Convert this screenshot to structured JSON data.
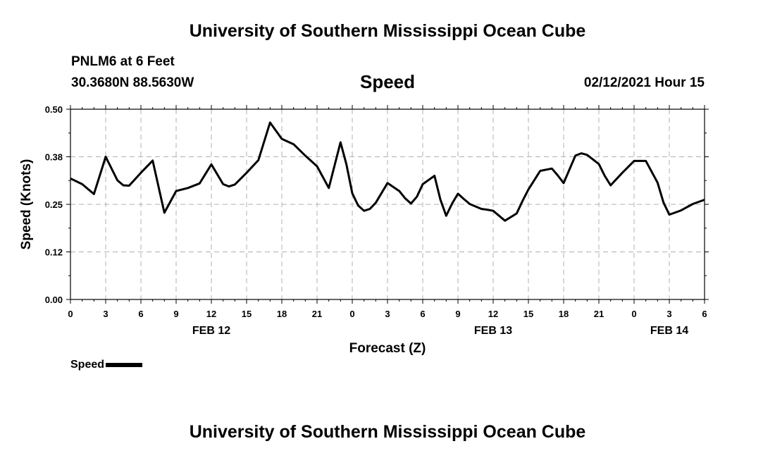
{
  "header": {
    "title": "University of Southern Mississippi Ocean Cube",
    "station": "PNLM6 at 6 Feet",
    "coords": "30.3680N 88.5630W",
    "variable": "Speed",
    "datetime": "02/12/2021 Hour 15"
  },
  "footer": {
    "title": "University of Southern Mississippi Ocean Cube"
  },
  "legend": {
    "label": "Speed"
  },
  "chart_data": {
    "type": "line",
    "title": "Speed",
    "xlabel": "Forecast (Z)",
    "ylabel": "Speed (Knots)",
    "ylim": [
      0,
      0.5
    ],
    "xlim": [
      0,
      54
    ],
    "yticks": [
      "0.00",
      "0.12",
      "0.25",
      "0.38",
      "0.50"
    ],
    "xticks": [
      "0",
      "3",
      "6",
      "9",
      "12",
      "15",
      "18",
      "21",
      "0",
      "3",
      "6",
      "9",
      "12",
      "15",
      "18",
      "21",
      "0",
      "3",
      "6"
    ],
    "date_labels": [
      {
        "label": "FEB 12",
        "at_hour": 12
      },
      {
        "label": "FEB 13",
        "at_hour": 36
      },
      {
        "label": "FEB 14",
        "at_hour": 51
      }
    ],
    "grid": true,
    "legend_position": "bottom-left",
    "line_color": "#000000",
    "series": [
      {
        "name": "Speed",
        "x": [
          0,
          1,
          2,
          3,
          4,
          4.5,
          5,
          6,
          7,
          8,
          9,
          10,
          11,
          12,
          13,
          13.5,
          14,
          15,
          16,
          17,
          18,
          19,
          20,
          21,
          22,
          23,
          23.5,
          24,
          24.5,
          25,
          25.5,
          26,
          27,
          28,
          28.5,
          29,
          29.5,
          30,
          31,
          31.5,
          32,
          32.5,
          33,
          33.5,
          34,
          35,
          35.5,
          36,
          37,
          38,
          38.5,
          39,
          40,
          41,
          41.5,
          42,
          43,
          43.5,
          44,
          45,
          45.5,
          46,
          47,
          48,
          49,
          50,
          50.5,
          51,
          52,
          53,
          54
        ],
        "values": [
          0.318,
          0.303,
          0.277,
          0.375,
          0.313,
          0.3,
          0.299,
          0.333,
          0.365,
          0.228,
          0.285,
          0.293,
          0.305,
          0.355,
          0.303,
          0.297,
          0.302,
          0.333,
          0.366,
          0.465,
          0.422,
          0.408,
          0.378,
          0.35,
          0.293,
          0.413,
          0.355,
          0.279,
          0.247,
          0.233,
          0.238,
          0.254,
          0.306,
          0.285,
          0.266,
          0.252,
          0.27,
          0.303,
          0.325,
          0.263,
          0.22,
          0.252,
          0.278,
          0.264,
          0.251,
          0.238,
          0.236,
          0.233,
          0.207,
          0.226,
          0.259,
          0.289,
          0.338,
          0.344,
          0.326,
          0.306,
          0.378,
          0.384,
          0.38,
          0.356,
          0.325,
          0.3,
          0.333,
          0.364,
          0.364,
          0.307,
          0.255,
          0.223,
          0.234,
          0.251,
          0.262
        ]
      }
    ]
  }
}
